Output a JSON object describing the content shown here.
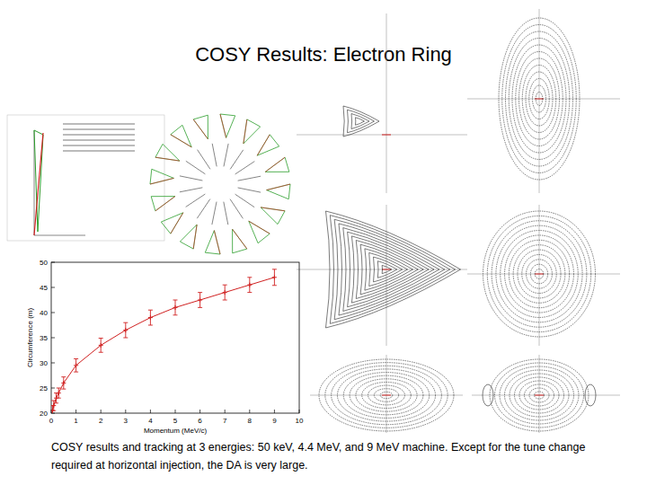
{
  "title": "COSY Results: Electron Ring",
  "caption": "COSY results and tracking at 3 energies: 50 keV, 4.4 MeV, and 9 MeV machine. Except for the tune change required at horizontal injection, the DA is very large.",
  "chart_data": {
    "type": "line",
    "x_label": "Momentum (MeV/c)",
    "y_label": "Circumference (m)",
    "x": [
      0.05,
      0.1,
      0.2,
      0.3,
      0.5,
      1,
      2,
      3,
      4,
      5,
      6,
      7,
      8,
      9
    ],
    "values": [
      20.5,
      21.5,
      23,
      24,
      26,
      29.5,
      33.5,
      36.5,
      39,
      41,
      42.5,
      44,
      45.5,
      47
    ],
    "errors": [
      1,
      1,
      1,
      1,
      1.2,
      1.3,
      1.4,
      1.5,
      1.5,
      1.5,
      1.5,
      1.5,
      1.5,
      1.6
    ],
    "color": "#d02020",
    "marker": "plus",
    "xlim": [
      0,
      10
    ],
    "ylim": [
      20,
      50
    ],
    "xticks": [
      0,
      1,
      2,
      3,
      4,
      5,
      6,
      7,
      8,
      9,
      10
    ],
    "yticks": [
      20,
      25,
      30,
      35,
      40,
      45,
      50
    ]
  }
}
